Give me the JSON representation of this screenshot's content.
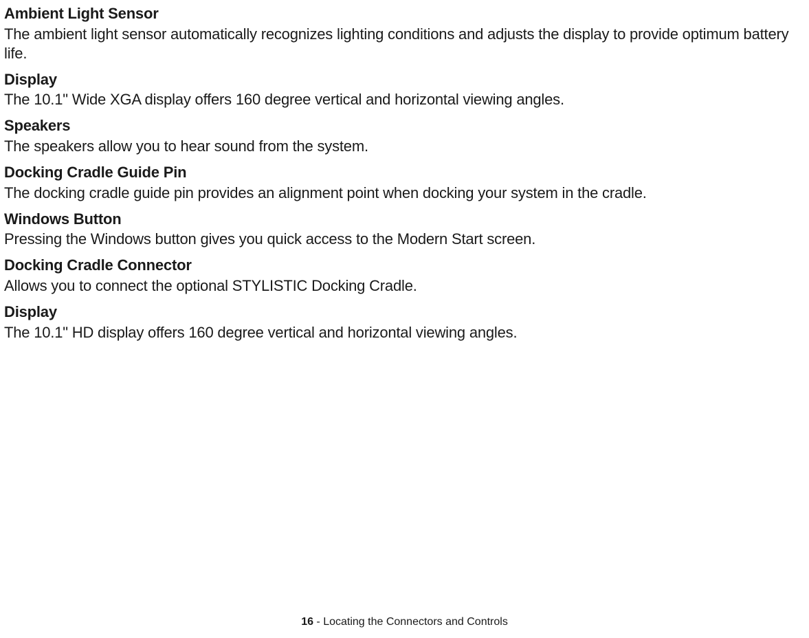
{
  "sections": [
    {
      "heading": "Ambient Light Sensor",
      "body": "The ambient light sensor automatically recognizes lighting conditions and adjusts the display to provide optimum battery life."
    },
    {
      "heading": "Display",
      "body": "The 10.1\" Wide XGA display offers 160 degree vertical and horizontal viewing angles."
    },
    {
      "heading": "Speakers",
      "body": "The speakers allow you to hear sound from the system."
    },
    {
      "heading": "Docking Cradle Guide Pin",
      "body": "The docking cradle guide pin provides an alignment point when docking your system in the cradle."
    },
    {
      "heading": "Windows Button",
      "body": "Pressing the Windows button gives you quick access to the Modern Start screen."
    },
    {
      "heading": "Docking Cradle Connector",
      "body": "Allows you to connect the optional STYLISTIC Docking Cradle."
    },
    {
      "heading": "Display",
      "body": "The 10.1\" HD display offers 160 degree vertical and horizontal viewing angles."
    }
  ],
  "footer": {
    "page_number": "16",
    "separator": " - ",
    "title": "Locating the Connectors and Controls"
  }
}
